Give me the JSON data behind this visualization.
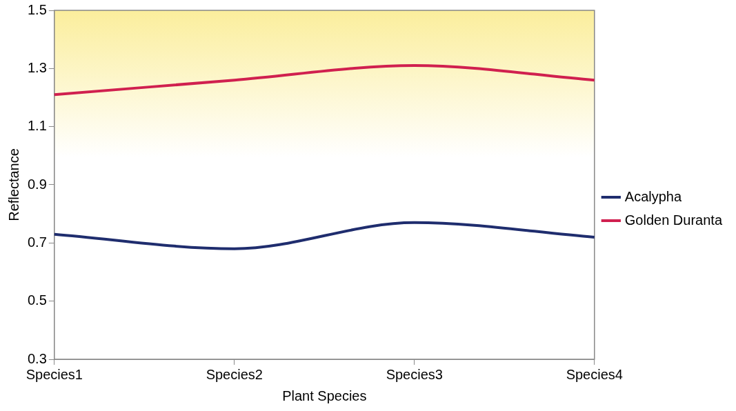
{
  "chart_data": {
    "type": "line",
    "xlabel": "Plant Species",
    "ylabel": "Reflectance",
    "categories": [
      "Species1",
      "Species2",
      "Species3",
      "Species4"
    ],
    "series": [
      {
        "name": "Acalypha",
        "color": "#1f2d6e",
        "values": [
          0.73,
          0.68,
          0.77,
          0.72
        ]
      },
      {
        "name": "Golden Duranta",
        "color": "#d0204f",
        "values": [
          1.21,
          1.26,
          1.31,
          1.26
        ]
      }
    ],
    "ylim": [
      0.3,
      1.5
    ],
    "yticks": [
      0.3,
      0.5,
      0.7,
      0.9,
      1.1,
      1.3,
      1.5
    ],
    "grid": false,
    "legend": "right",
    "marker": "none"
  }
}
